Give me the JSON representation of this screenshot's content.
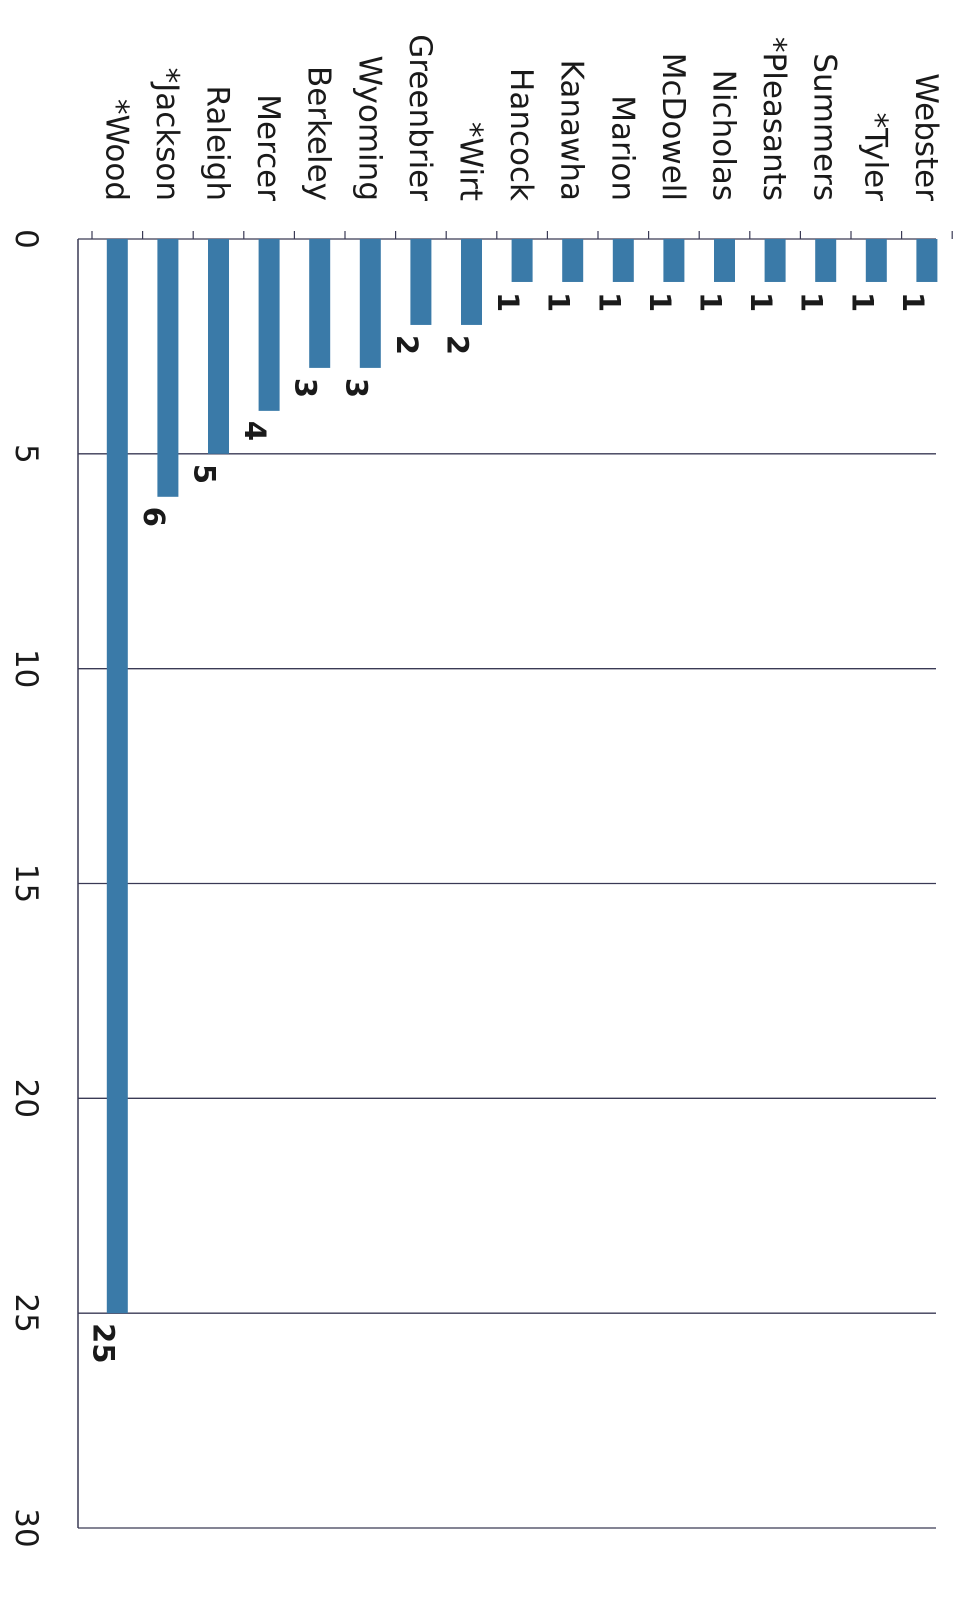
{
  "colors": {
    "bar": "#3a7aa8",
    "grid": "#3a3a55",
    "text": "#1a1a1a"
  },
  "chart_data": {
    "type": "bar",
    "orientation": "horizontal",
    "categories": [
      "*Wood",
      "*Jackson",
      "Raleigh",
      "Mercer",
      "Berkeley",
      "Wyoming",
      "Greenbrier",
      "*Wirt",
      "Hancock",
      "Kanawha",
      "Marion",
      "McDowell",
      "Nicholas",
      "*Pleasants",
      "Summers",
      "*Tyler",
      "Webster"
    ],
    "values": [
      25,
      6,
      5,
      4,
      3,
      3,
      2,
      2,
      1,
      1,
      1,
      1,
      1,
      1,
      1,
      1,
      1
    ],
    "value_labels": [
      "25",
      "6",
      "5",
      "4",
      "3",
      "3",
      "2",
      "2",
      "1",
      "1",
      "1",
      "1",
      "1",
      "1",
      "1",
      "1",
      "1"
    ],
    "title": "",
    "xlabel": "",
    "ylabel": "",
    "value_axis": {
      "range": [
        0,
        30
      ],
      "ticks": [
        0,
        5,
        10,
        15,
        20,
        25,
        30
      ],
      "tick_labels": [
        "0",
        "5",
        "10",
        "15",
        "20",
        "25",
        "30"
      ]
    },
    "grid": true,
    "legend": "none"
  }
}
